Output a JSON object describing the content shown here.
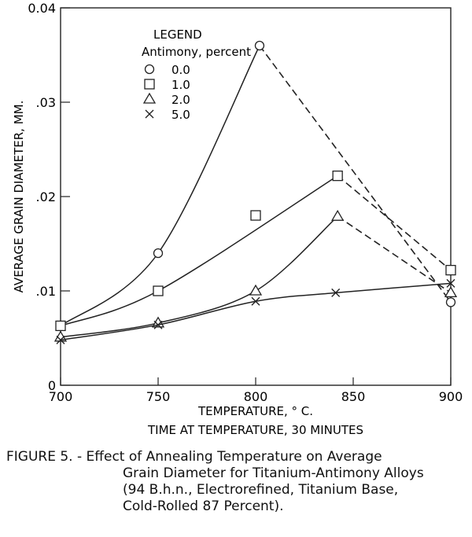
{
  "chart_data": {
    "type": "line",
    "title": "",
    "xlabel": "TEMPERATURE, ° C.",
    "xlabel2": "TIME AT TEMPERATURE, 30 MINUTES",
    "ylabel": "AVERAGE GRAIN DIAMETER, MM.",
    "xlim": [
      700,
      900
    ],
    "ylim": [
      0,
      0.04
    ],
    "xticks": [
      700,
      750,
      800,
      850,
      900
    ],
    "xtick_labels": [
      "700",
      "750",
      "800",
      "850",
      "900"
    ],
    "yticks": [
      0,
      0.01,
      0.02,
      0.03,
      0.04
    ],
    "ytick_labels": [
      "0",
      ".01",
      ".02",
      ".03",
      "0.04"
    ],
    "grid": false,
    "legend": {
      "title": "LEGEND",
      "subtitle": "Antimony, percent",
      "placement": "top-left"
    },
    "series": [
      {
        "name": "0.0",
        "marker": "circle",
        "x": [
          700,
          750,
          802,
          900
        ],
        "y": [
          0.0063,
          0.014,
          0.036,
          0.0088
        ],
        "peak_index": 2
      },
      {
        "name": "1.0",
        "marker": "square",
        "x": [
          700,
          750,
          800,
          842,
          900
        ],
        "y": [
          0.0063,
          0.01,
          0.018,
          0.0222,
          0.0122
        ],
        "peak_index": 3,
        "off_curve": [
          2
        ]
      },
      {
        "name": "2.0",
        "marker": "triangle",
        "x": [
          700,
          750,
          800,
          842,
          900
        ],
        "y": [
          0.0051,
          0.0066,
          0.01,
          0.0179,
          0.0098
        ],
        "peak_index": 3
      },
      {
        "name": "5.0",
        "marker": "x",
        "x": [
          700,
          750,
          800,
          841,
          900
        ],
        "y": [
          0.0048,
          0.0064,
          0.0089,
          0.0098,
          0.0108
        ],
        "peak_index": 4
      }
    ]
  },
  "caption": {
    "line1": "FIGURE 5. - Effect of Annealing Temperature on Average",
    "line2": "Grain Diameter for Titanium-Antimony Alloys",
    "line3": "(94 B.h.n., Electrorefined, Titanium Base,",
    "line4": "Cold-Rolled 87 Percent)."
  }
}
